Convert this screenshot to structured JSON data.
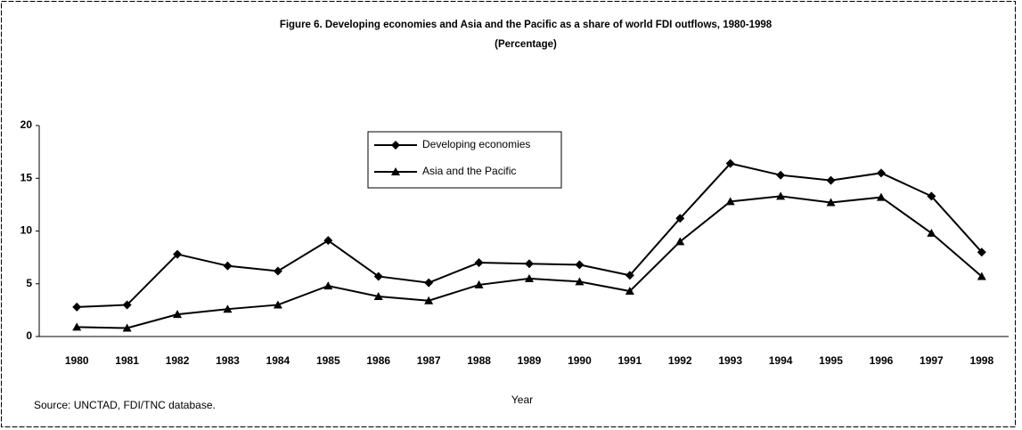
{
  "chart_data": {
    "type": "line",
    "title": "Figure 6.  Developing economies and Asia and the Pacific as a share of world FDI outflows, 1980-1998",
    "subtitle": "(Percentage)",
    "x_label": "Year",
    "source": "Source: UNCTAD, FDI/TNC database.",
    "categories": [
      "1980",
      "1981",
      "1982",
      "1983",
      "1984",
      "1985",
      "1986",
      "1987",
      "1988",
      "1989",
      "1990",
      "1991",
      "1992",
      "1993",
      "1994",
      "1995",
      "1996",
      "1997",
      "1998"
    ],
    "series": [
      {
        "name": "Developing economies",
        "color": "#000000",
        "marker": "diamond",
        "values": [
          2.8,
          3.0,
          7.8,
          6.7,
          6.2,
          9.1,
          5.7,
          5.1,
          7.0,
          6.9,
          6.8,
          5.8,
          11.2,
          16.4,
          15.3,
          14.8,
          15.5,
          13.3,
          8.0
        ]
      },
      {
        "name": "Asia and the Pacific",
        "color": "#000000",
        "marker": "triangle",
        "values": [
          0.9,
          0.8,
          2.1,
          2.6,
          3.0,
          4.8,
          3.8,
          3.4,
          4.9,
          5.5,
          5.2,
          4.3,
          9.0,
          12.8,
          13.3,
          12.7,
          13.2,
          9.8,
          5.7
        ]
      }
    ],
    "ylim": [
      0,
      20
    ],
    "yticks": [
      0,
      5,
      10,
      15,
      20
    ],
    "grid": false
  }
}
